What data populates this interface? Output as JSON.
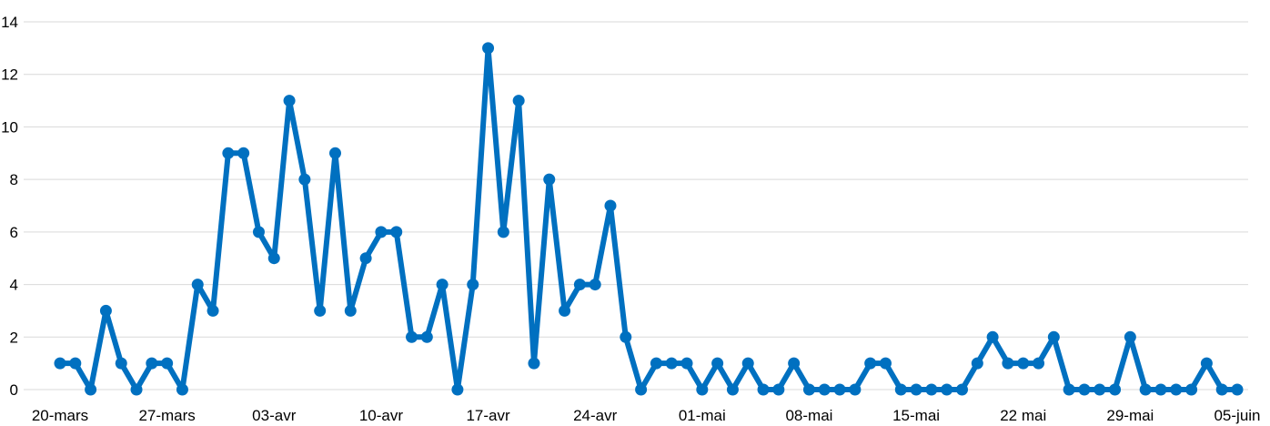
{
  "chart_data": {
    "type": "line",
    "title": "",
    "xlabel": "",
    "ylabel": "",
    "ylim": [
      0,
      14
    ],
    "yticks": [
      0,
      2,
      4,
      6,
      8,
      10,
      12,
      14
    ],
    "grid": "horizontal",
    "legend": "none",
    "x_tick_labels": [
      {
        "index": 0,
        "label": "20-mars"
      },
      {
        "index": 7,
        "label": "27-mars"
      },
      {
        "index": 14,
        "label": "03-avr"
      },
      {
        "index": 21,
        "label": "10-avr"
      },
      {
        "index": 28,
        "label": "17-avr"
      },
      {
        "index": 35,
        "label": "24-avr"
      },
      {
        "index": 42,
        "label": "01-mai"
      },
      {
        "index": 49,
        "label": "08-mai"
      },
      {
        "index": 56,
        "label": "15-mai"
      },
      {
        "index": 63,
        "label": "22 mai"
      },
      {
        "index": 70,
        "label": "29-mai"
      },
      {
        "index": 77,
        "label": "05-juin"
      }
    ],
    "series": [
      {
        "color": "#0070C0",
        "values": [
          1,
          1,
          0,
          3,
          1,
          0,
          1,
          1,
          0,
          4,
          3,
          9,
          9,
          6,
          5,
          11,
          8,
          3,
          9,
          3,
          5,
          6,
          6,
          2,
          2,
          4,
          0,
          4,
          13,
          6,
          11,
          1,
          8,
          3,
          4,
          4,
          7,
          2,
          0,
          1,
          1,
          1,
          0,
          1,
          0,
          1,
          0,
          0,
          1,
          0,
          0,
          0,
          0,
          1,
          1,
          0,
          0,
          0,
          0,
          0,
          1,
          2,
          1,
          1,
          1,
          2,
          0,
          0,
          0,
          0,
          2,
          0,
          0,
          0,
          0,
          1,
          0,
          0
        ]
      }
    ]
  }
}
